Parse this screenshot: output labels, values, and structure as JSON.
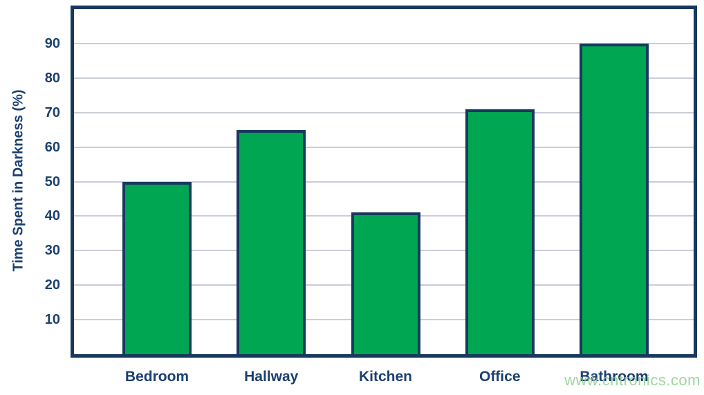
{
  "chart_data": {
    "type": "bar",
    "title": "",
    "xlabel": "",
    "ylabel": "Time Spent in Darkness (%)",
    "categories": [
      "Bedroom",
      "Hallway",
      "Kitchen",
      "Office",
      "Bathroom"
    ],
    "values": [
      50,
      65,
      41,
      71,
      90
    ],
    "ylim": [
      0,
      100
    ],
    "yticks": [
      10,
      20,
      30,
      40,
      50,
      60,
      70,
      80,
      90
    ],
    "grid": true,
    "legend": "none",
    "colors": {
      "bar_fill": "#00A651",
      "bar_border": "#17395E",
      "axis_frame": "#17395E",
      "gridline": "#C9CDDA",
      "label_text": "#1B4070"
    }
  },
  "watermark": {
    "text": "www.cntronics.com",
    "color": "#8FCF8F"
  }
}
